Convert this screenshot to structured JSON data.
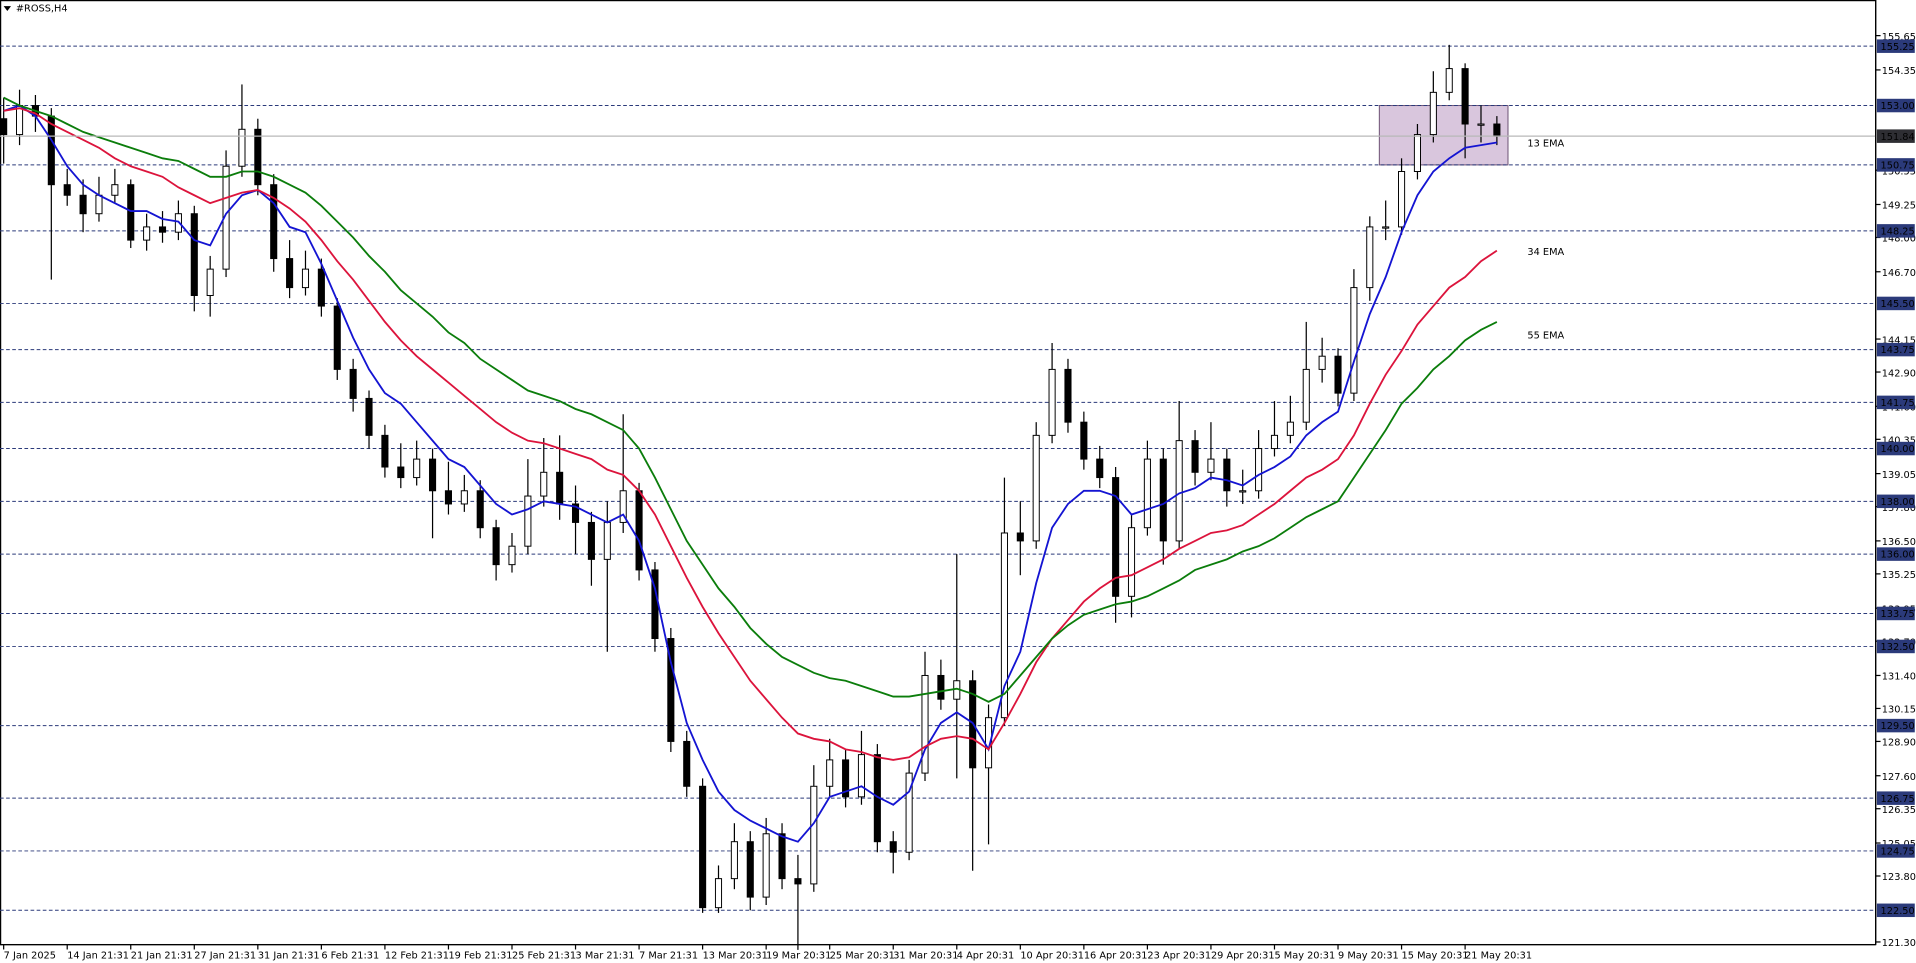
{
  "chart_data": {
    "type": "candlestick",
    "title": "#ROSS,H4",
    "categories": [
      "7 Jan 2025",
      null,
      null,
      null,
      "14 Jan 21:31",
      null,
      null,
      null,
      "21 Jan 21:31",
      null,
      null,
      null,
      "27 Jan 21:31",
      null,
      null,
      null,
      "31 Jan 21:31",
      null,
      null,
      null,
      "6 Feb 21:31",
      null,
      null,
      null,
      "12 Feb 21:31",
      null,
      null,
      null,
      "19 Feb 21:31",
      null,
      null,
      null,
      "25 Feb 21:31",
      null,
      null,
      null,
      "3 Mar 21:31",
      null,
      null,
      null,
      "7 Mar 21:31",
      null,
      null,
      null,
      "13 Mar 20:31",
      null,
      null,
      null,
      "19 Mar 20:31",
      null,
      null,
      null,
      "25 Mar 20:31",
      null,
      null,
      null,
      "31 Mar 20:31",
      null,
      null,
      null,
      "4 Apr 20:31",
      null,
      null,
      null,
      "10 Apr 20:31",
      null,
      null,
      null,
      "16 Apr 20:31",
      null,
      null,
      null,
      "23 Apr 20:31",
      null,
      null,
      null,
      "29 Apr 20:31",
      null,
      null,
      null,
      "5 May 20:31",
      null,
      null,
      null,
      "9 May 20:31",
      null,
      null,
      null,
      "15 May 20:31",
      null,
      null,
      null,
      "21 May 20:31",
      null,
      null
    ],
    "ohlc": [
      [
        152.5,
        153.3,
        150.8,
        151.9
      ],
      [
        151.9,
        153.6,
        151.5,
        153.0
      ],
      [
        153.0,
        153.4,
        152.0,
        152.6
      ],
      [
        152.6,
        152.9,
        146.4,
        150.0
      ],
      [
        150.0,
        150.6,
        149.2,
        149.6
      ],
      [
        149.6,
        150.2,
        148.2,
        148.9
      ],
      [
        148.9,
        150.3,
        148.6,
        149.6
      ],
      [
        149.6,
        150.6,
        149.3,
        150.0
      ],
      [
        150.0,
        150.2,
        147.6,
        147.9
      ],
      [
        147.9,
        148.9,
        147.5,
        148.4
      ],
      [
        148.4,
        149.0,
        147.8,
        148.2
      ],
      [
        148.2,
        149.4,
        147.9,
        148.9
      ],
      [
        148.9,
        149.2,
        145.2,
        145.8
      ],
      [
        145.8,
        147.3,
        145.0,
        146.8
      ],
      [
        146.8,
        151.3,
        146.5,
        150.7
      ],
      [
        150.7,
        153.8,
        150.3,
        152.1
      ],
      [
        152.1,
        152.5,
        149.6,
        150.0
      ],
      [
        150.0,
        150.4,
        146.7,
        147.2
      ],
      [
        147.2,
        147.9,
        145.7,
        146.1
      ],
      [
        146.1,
        147.5,
        145.8,
        146.8
      ],
      [
        146.8,
        147.2,
        145.0,
        145.4
      ],
      [
        145.4,
        145.7,
        142.6,
        143.0
      ],
      [
        143.0,
        143.4,
        141.4,
        141.9
      ],
      [
        141.9,
        142.2,
        140.0,
        140.5
      ],
      [
        140.5,
        140.9,
        138.9,
        139.3
      ],
      [
        139.3,
        140.2,
        138.5,
        138.9
      ],
      [
        138.9,
        140.3,
        138.6,
        139.6
      ],
      [
        139.6,
        140.0,
        136.6,
        138.4
      ],
      [
        138.4,
        139.5,
        137.5,
        137.9
      ],
      [
        137.9,
        139.0,
        137.6,
        138.4
      ],
      [
        138.4,
        138.8,
        136.6,
        137.0
      ],
      [
        137.0,
        137.3,
        135.0,
        135.6
      ],
      [
        135.6,
        136.8,
        135.3,
        136.3
      ],
      [
        136.3,
        139.6,
        136.0,
        138.2
      ],
      [
        138.2,
        140.4,
        137.8,
        139.1
      ],
      [
        139.1,
        140.5,
        137.3,
        137.9
      ],
      [
        137.9,
        138.6,
        136.0,
        137.2
      ],
      [
        137.2,
        137.6,
        134.8,
        135.8
      ],
      [
        135.8,
        138.0,
        132.3,
        137.2
      ],
      [
        137.2,
        141.3,
        136.8,
        138.4
      ],
      [
        138.4,
        138.7,
        135.0,
        135.4
      ],
      [
        135.4,
        135.7,
        132.3,
        132.8
      ],
      [
        132.8,
        133.2,
        128.5,
        128.9
      ],
      [
        128.9,
        129.3,
        126.8,
        127.2
      ],
      [
        127.2,
        127.5,
        122.4,
        122.6
      ],
      [
        122.6,
        124.2,
        122.4,
        123.7
      ],
      [
        123.7,
        125.8,
        123.3,
        125.1
      ],
      [
        125.1,
        125.5,
        122.5,
        123.0
      ],
      [
        123.0,
        126.0,
        122.7,
        125.4
      ],
      [
        125.4,
        125.8,
        123.3,
        123.7
      ],
      [
        123.7,
        124.6,
        121.0,
        123.5
      ],
      [
        123.5,
        128.0,
        123.2,
        127.2
      ],
      [
        127.2,
        129.0,
        126.8,
        128.2
      ],
      [
        128.2,
        128.6,
        126.4,
        126.8
      ],
      [
        126.8,
        129.3,
        126.5,
        128.4
      ],
      [
        128.4,
        128.8,
        124.7,
        125.1
      ],
      [
        125.1,
        125.5,
        123.9,
        124.7
      ],
      [
        124.7,
        128.2,
        124.4,
        127.7
      ],
      [
        127.7,
        132.3,
        127.4,
        131.4
      ],
      [
        131.4,
        132.0,
        130.1,
        130.5
      ],
      [
        130.5,
        136.0,
        127.5,
        131.2
      ],
      [
        131.2,
        131.6,
        124.0,
        127.9
      ],
      [
        127.9,
        130.3,
        125.0,
        129.8
      ],
      [
        129.8,
        138.9,
        129.5,
        136.8
      ],
      [
        136.8,
        138.0,
        135.2,
        136.5
      ],
      [
        136.5,
        141.0,
        136.2,
        140.5
      ],
      [
        140.5,
        144.0,
        140.2,
        143.0
      ],
      [
        143.0,
        143.4,
        140.6,
        141.0
      ],
      [
        141.0,
        141.4,
        139.2,
        139.6
      ],
      [
        139.6,
        140.1,
        138.5,
        138.9
      ],
      [
        138.9,
        139.3,
        133.4,
        134.4
      ],
      [
        134.4,
        137.5,
        133.6,
        137.0
      ],
      [
        137.0,
        140.3,
        136.7,
        139.6
      ],
      [
        139.6,
        140.0,
        135.6,
        136.5
      ],
      [
        136.5,
        141.8,
        136.2,
        140.3
      ],
      [
        140.3,
        140.7,
        138.6,
        139.1
      ],
      [
        139.1,
        141.0,
        138.8,
        139.6
      ],
      [
        139.6,
        140.0,
        137.8,
        138.4
      ],
      [
        138.4,
        139.2,
        137.9,
        138.4
      ],
      [
        138.4,
        140.7,
        138.1,
        140.0
      ],
      [
        140.0,
        141.8,
        139.7,
        140.5
      ],
      [
        140.5,
        142.0,
        140.2,
        141.0
      ],
      [
        141.0,
        144.8,
        140.7,
        143.0
      ],
      [
        143.0,
        144.2,
        142.5,
        143.5
      ],
      [
        143.5,
        143.8,
        141.6,
        142.1
      ],
      [
        142.1,
        146.8,
        141.8,
        146.1
      ],
      [
        146.1,
        148.8,
        145.6,
        148.4
      ],
      [
        148.4,
        149.4,
        147.9,
        148.4
      ],
      [
        148.4,
        151.0,
        148.1,
        150.5
      ],
      [
        150.5,
        152.3,
        150.2,
        151.9
      ],
      [
        151.9,
        154.3,
        151.6,
        153.5
      ],
      [
        153.5,
        155.3,
        153.2,
        154.4
      ],
      [
        154.4,
        154.6,
        151.0,
        152.3
      ],
      [
        152.3,
        153.0,
        151.6,
        152.3
      ],
      [
        152.3,
        152.6,
        151.5,
        151.84
      ]
    ],
    "up_color": "#ffffff",
    "down_color": "#000000",
    "ylim": [
      121.2,
      157.0
    ],
    "yticks": [
      155.65,
      154.35,
      150.55,
      149.25,
      {
        "value": 148,
        "label": "148.00"
      },
      {
        "value": 146.7,
        "label": "146.70"
      },
      144.15,
      {
        "value": 142.9,
        "label": "142.90"
      },
      {
        "value": 141.6,
        "label": "141.60"
      },
      140.35,
      139.05,
      {
        "value": 137.8,
        "label": "137.80"
      },
      {
        "value": 136.5,
        "label": "136.50"
      },
      135.25,
      133.95,
      {
        "value": 132.7,
        "label": "132.70"
      },
      {
        "value": 131.4,
        "label": "131.40"
      },
      130.15,
      {
        "value": 128.9,
        "label": "128.90"
      },
      {
        "value": 127.6,
        "label": "127.60"
      },
      126.35,
      125.05,
      {
        "value": 123.8,
        "label": "123.80"
      },
      {
        "value": 121.3,
        "label": "121.30"
      }
    ],
    "levels": [
      155.25,
      {
        "value": 153,
        "label": "153.00"
      },
      150.75,
      148.25,
      {
        "value": 145.5,
        "label": "145.50"
      },
      143.75,
      141.75,
      {
        "value": 140,
        "label": "140.00"
      },
      {
        "value": 138,
        "label": "138.00"
      },
      {
        "value": 136,
        "label": "136.00"
      },
      133.75,
      {
        "value": 132.5,
        "label": "132.50"
      },
      {
        "value": 129.5,
        "label": "129.50"
      },
      126.75,
      124.75,
      {
        "value": 122.5,
        "label": "122.50"
      }
    ],
    "level_color": "#2b3a7a",
    "zone": {
      "from": 150.75,
      "to": 153,
      "color": "#d9c6dd"
    },
    "grid": false,
    "series": [
      {
        "name": "13 EMA",
        "color": "#1414d2",
        "values": [
          152.8,
          153.0,
          152.6,
          151.7,
          150.7,
          150.0,
          149.6,
          149.3,
          149.0,
          149.0,
          148.7,
          148.6,
          147.9,
          147.7,
          148.9,
          149.6,
          149.8,
          149.3,
          148.4,
          148.2,
          147.0,
          145.6,
          144.2,
          143.0,
          142.1,
          141.7,
          141.0,
          140.3,
          139.6,
          139.3,
          138.6,
          137.9,
          137.5,
          137.7,
          138.0,
          137.9,
          137.8,
          137.5,
          137.2,
          137.5,
          136.5,
          134.7,
          131.9,
          129.6,
          128.2,
          127.0,
          126.3,
          125.9,
          125.6,
          125.3,
          125.1,
          125.8,
          126.8,
          127.0,
          127.2,
          126.8,
          126.5,
          127.0,
          128.6,
          129.6,
          130.0,
          129.6,
          128.6,
          131.0,
          132.3,
          134.9,
          137.0,
          137.9,
          138.4,
          138.4,
          138.2,
          137.5,
          137.7,
          137.9,
          138.3,
          138.5,
          138.9,
          138.8,
          138.6,
          139.0,
          139.3,
          139.7,
          140.5,
          141.0,
          141.4,
          143.3,
          145.1,
          146.5,
          148.2,
          149.6,
          150.5,
          151.0,
          151.4,
          151.5,
          151.6
        ]
      },
      {
        "name": "34 EMA",
        "color": "#dc143c",
        "values": [
          152.8,
          152.9,
          152.7,
          152.3,
          152.0,
          151.7,
          151.4,
          151.0,
          150.7,
          150.5,
          150.3,
          149.9,
          149.6,
          149.3,
          149.5,
          149.7,
          149.8,
          149.5,
          149.1,
          148.6,
          147.9,
          147.1,
          146.4,
          145.6,
          144.8,
          144.1,
          143.5,
          143.0,
          142.5,
          142.0,
          141.5,
          141.0,
          140.6,
          140.3,
          140.2,
          140.0,
          139.8,
          139.6,
          139.2,
          139.0,
          138.4,
          137.5,
          136.3,
          135.1,
          134.0,
          133.0,
          132.1,
          131.2,
          130.5,
          129.8,
          129.2,
          129.0,
          128.9,
          128.6,
          128.5,
          128.3,
          128.2,
          128.3,
          128.7,
          129.0,
          129.1,
          129.0,
          128.6,
          129.6,
          130.7,
          131.9,
          132.8,
          133.5,
          134.2,
          134.7,
          135.1,
          135.2,
          135.5,
          135.8,
          136.2,
          136.5,
          136.8,
          136.9,
          137.1,
          137.5,
          137.9,
          138.4,
          138.9,
          139.2,
          139.6,
          140.5,
          141.7,
          142.8,
          143.7,
          144.7,
          145.4,
          146.1,
          146.5,
          147.1,
          147.5
        ]
      },
      {
        "name": "55 EMA",
        "color": "#0b7d0b",
        "values": [
          153.3,
          153.0,
          152.8,
          152.6,
          152.3,
          152.0,
          151.8,
          151.6,
          151.4,
          151.2,
          151.0,
          150.9,
          150.6,
          150.3,
          150.3,
          150.5,
          150.5,
          150.3,
          150.0,
          149.7,
          149.2,
          148.6,
          148.0,
          147.3,
          146.7,
          146.0,
          145.5,
          145.0,
          144.4,
          144.0,
          143.4,
          143.0,
          142.6,
          142.2,
          142.0,
          141.8,
          141.5,
          141.3,
          141.0,
          140.7,
          140.0,
          138.9,
          137.7,
          136.5,
          135.6,
          134.7,
          134.0,
          133.2,
          132.6,
          132.1,
          131.8,
          131.5,
          131.3,
          131.2,
          131.0,
          130.8,
          130.6,
          130.6,
          130.7,
          130.8,
          130.9,
          130.7,
          130.4,
          130.7,
          131.4,
          132.1,
          132.8,
          133.3,
          133.7,
          133.9,
          134.1,
          134.2,
          134.4,
          134.7,
          135.0,
          135.4,
          135.6,
          135.8,
          136.1,
          136.3,
          136.6,
          137.0,
          137.4,
          137.7,
          138.0,
          138.9,
          139.8,
          140.7,
          141.7,
          142.3,
          143.0,
          143.5,
          144.1,
          144.5,
          144.8
        ]
      }
    ]
  }
}
